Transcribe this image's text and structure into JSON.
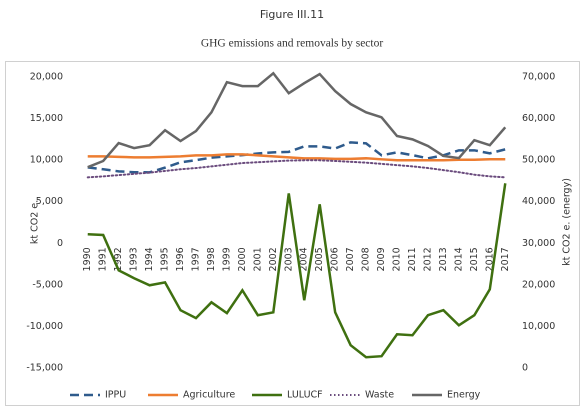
{
  "chart_data": {
    "type": "line",
    "figure_label": "Figure III.11",
    "title": "GHG emissions and removals by sector",
    "ylabel": "kt CO2 e.",
    "y2label": "kt CO2 e. (energy)",
    "categories": [
      "1990",
      "1991",
      "1992",
      "1993",
      "1994",
      "1995",
      "1996",
      "1997",
      "1998",
      "1999",
      "2000",
      "2001",
      "2002",
      "2003",
      "2004",
      "2005",
      "2006",
      "2007",
      "2008",
      "2009",
      "2010",
      "2011",
      "2012",
      "2013",
      "2014",
      "2015",
      "2016",
      "2017"
    ],
    "ylim": [
      -15000,
      20000
    ],
    "yticks": [
      {
        "value": 20000,
        "label": "20,000"
      },
      {
        "value": 15000,
        "label": "15,000"
      },
      {
        "value": 10000,
        "label": "10,000"
      },
      {
        "value": 5000,
        "label": "5,000"
      },
      0,
      {
        "value": -5000,
        "label": "-5,000"
      },
      {
        "value": -10000,
        "label": "-10,000"
      },
      {
        "value": -15000,
        "label": "-15,000"
      }
    ],
    "y2lim": [
      0,
      70000
    ],
    "y2ticks": [
      {
        "value": 70000,
        "label": "70,000"
      },
      {
        "value": 60000,
        "label": "60,000"
      },
      {
        "value": 50000,
        "label": "50,000"
      },
      {
        "value": 40000,
        "label": "40,000"
      },
      {
        "value": 30000,
        "label": "30,000"
      },
      {
        "value": 20000,
        "label": "20,000"
      },
      {
        "value": 10000,
        "label": "10,000"
      },
      0
    ],
    "grid": false,
    "legend": "bottom",
    "series": [
      {
        "name": "IPPU",
        "color": "#2f5b8c",
        "style": "dashed",
        "values": [
          9130,
          8900,
          8650,
          8550,
          8530,
          9100,
          9740,
          10000,
          10300,
          10460,
          10600,
          10800,
          10940,
          11000,
          11660,
          11660,
          11400,
          12140,
          12020,
          10580,
          10940,
          10600,
          10220,
          10580,
          11180,
          11180,
          10820,
          11300
        ]
      },
      {
        "name": "Agriculture",
        "color": "#ed7d31",
        "style": "solid",
        "values": [
          10460,
          10460,
          10400,
          10340,
          10340,
          10400,
          10460,
          10580,
          10580,
          10700,
          10700,
          10580,
          10460,
          10340,
          10220,
          10220,
          10160,
          10160,
          10220,
          10100,
          9980,
          9980,
          9980,
          9980,
          10040,
          10040,
          10100,
          10100
        ]
      },
      {
        "name": "LULUCF",
        "color": "#3f7010",
        "style": "solid",
        "values": [
          1080,
          1000,
          -3250,
          -4200,
          -5050,
          -4700,
          -8050,
          -9000,
          -7100,
          -8400,
          -5650,
          -8650,
          -8300,
          6000,
          -6850,
          4690,
          -8300,
          -12260,
          -13700,
          -13580,
          -10940,
          -11060,
          -8650,
          -8050,
          -9860,
          -8650,
          -5530,
          7210
        ]
      },
      {
        "name": "Waste",
        "color": "#6a4b7d",
        "style": "dotted",
        "values": [
          7930,
          8050,
          8200,
          8350,
          8500,
          8700,
          8900,
          9050,
          9250,
          9450,
          9650,
          9750,
          9850,
          9950,
          9980,
          9980,
          9900,
          9800,
          9700,
          9550,
          9400,
          9250,
          9050,
          8800,
          8550,
          8250,
          8050,
          7930
        ]
      },
      {
        "name": "Energy",
        "color": "#666666",
        "style": "solid",
        "axis": "y2",
        "values": [
          48300,
          49800,
          54100,
          52900,
          53600,
          57200,
          54600,
          57000,
          61500,
          68750,
          67800,
          67800,
          70900,
          66100,
          68500,
          70700,
          66600,
          63500,
          61500,
          60300,
          55800,
          55000,
          53400,
          51000,
          50500,
          54800,
          53600,
          57900
        ]
      }
    ]
  }
}
